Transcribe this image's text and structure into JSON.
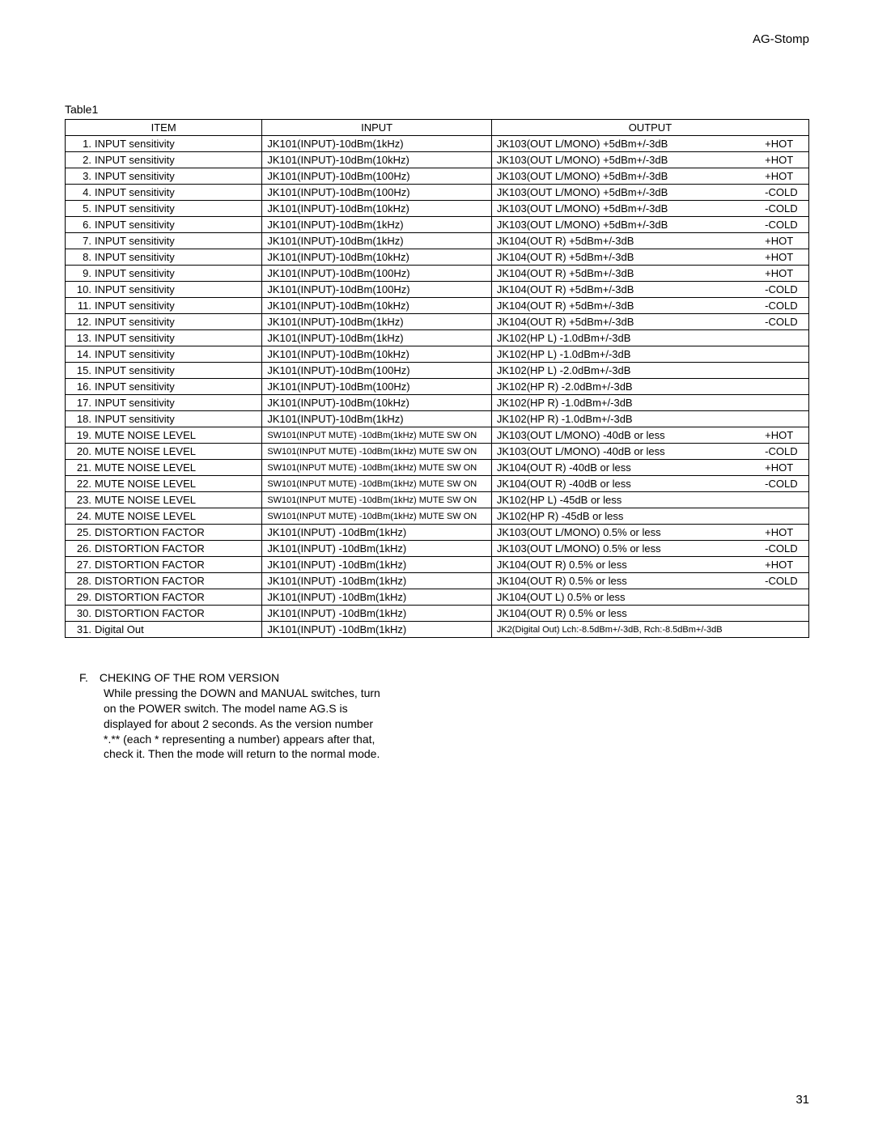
{
  "header": {
    "title": "AG-Stomp"
  },
  "table": {
    "caption": "Table1",
    "headers": {
      "item": "ITEM",
      "input": "INPUT",
      "output": "OUTPUT"
    },
    "rows": [
      {
        "n": "1.",
        "item": "INPUT sensitivity",
        "input": "JK101(INPUT)-10dBm(1kHz)",
        "out": "JK103(OUT L/MONO) +5dBm+/-3dB",
        "tag": "+HOT"
      },
      {
        "n": "2.",
        "item": "INPUT sensitivity",
        "input": "JK101(INPUT)-10dBm(10kHz)",
        "out": "JK103(OUT L/MONO) +5dBm+/-3dB",
        "tag": "+HOT"
      },
      {
        "n": "3.",
        "item": "INPUT sensitivity",
        "input": "JK101(INPUT)-10dBm(100Hz)",
        "out": "JK103(OUT L/MONO) +5dBm+/-3dB",
        "tag": "+HOT"
      },
      {
        "n": "4.",
        "item": "INPUT sensitivity",
        "input": "JK101(INPUT)-10dBm(100Hz)",
        "out": "JK103(OUT L/MONO) +5dBm+/-3dB",
        "tag": "-COLD"
      },
      {
        "n": "5.",
        "item": "INPUT sensitivity",
        "input": "JK101(INPUT)-10dBm(10kHz)",
        "out": "JK103(OUT L/MONO) +5dBm+/-3dB",
        "tag": "-COLD"
      },
      {
        "n": "6.",
        "item": "INPUT sensitivity",
        "input": "JK101(INPUT)-10dBm(1kHz)",
        "out": "JK103(OUT L/MONO) +5dBm+/-3dB",
        "tag": "-COLD"
      },
      {
        "n": "7.",
        "item": "INPUT sensitivity",
        "input": "JK101(INPUT)-10dBm(1kHz)",
        "out": "JK104(OUT R) +5dBm+/-3dB",
        "tag": "+HOT"
      },
      {
        "n": "8.",
        "item": "INPUT sensitivity",
        "input": "JK101(INPUT)-10dBm(10kHz)",
        "out": "JK104(OUT R) +5dBm+/-3dB",
        "tag": "+HOT"
      },
      {
        "n": "9.",
        "item": "INPUT sensitivity",
        "input": "JK101(INPUT)-10dBm(100Hz)",
        "out": "JK104(OUT R) +5dBm+/-3dB",
        "tag": "+HOT"
      },
      {
        "n": "10.",
        "item": "INPUT sensitivity",
        "input": "JK101(INPUT)-10dBm(100Hz)",
        "out": "JK104(OUT R) +5dBm+/-3dB",
        "tag": "-COLD"
      },
      {
        "n": "11.",
        "item": "INPUT sensitivity",
        "input": "JK101(INPUT)-10dBm(10kHz)",
        "out": "JK104(OUT R) +5dBm+/-3dB",
        "tag": "-COLD"
      },
      {
        "n": "12.",
        "item": "INPUT sensitivity",
        "input": "JK101(INPUT)-10dBm(1kHz)",
        "out": "JK104(OUT R) +5dBm+/-3dB",
        "tag": "-COLD"
      },
      {
        "n": "13.",
        "item": "INPUT sensitivity",
        "input": "JK101(INPUT)-10dBm(1kHz)",
        "out": "JK102(HP L) -1.0dBm+/-3dB",
        "tag": ""
      },
      {
        "n": "14.",
        "item": "INPUT sensitivity",
        "input": "JK101(INPUT)-10dBm(10kHz)",
        "out": "JK102(HP L) -1.0dBm+/-3dB",
        "tag": ""
      },
      {
        "n": "15.",
        "item": "INPUT sensitivity",
        "input": "JK101(INPUT)-10dBm(100Hz)",
        "out": "JK102(HP L) -2.0dBm+/-3dB",
        "tag": ""
      },
      {
        "n": "16.",
        "item": "INPUT sensitivity",
        "input": "JK101(INPUT)-10dBm(100Hz)",
        "out": "JK102(HP R) -2.0dBm+/-3dB",
        "tag": ""
      },
      {
        "n": "17.",
        "item": "INPUT sensitivity",
        "input": "JK101(INPUT)-10dBm(10kHz)",
        "out": "JK102(HP R) -1.0dBm+/-3dB",
        "tag": ""
      },
      {
        "n": "18.",
        "item": "INPUT sensitivity",
        "input": "JK101(INPUT)-10dBm(1kHz)",
        "out": "JK102(HP R) -1.0dBm+/-3dB",
        "tag": ""
      },
      {
        "n": "19.",
        "item": "MUTE NOISE LEVEL",
        "input": "SW101(INPUT MUTE) -10dBm(1kHz) MUTE SW ON",
        "out": "JK103(OUT L/MONO) -40dB or less",
        "tag": "+HOT",
        "small": true
      },
      {
        "n": "20.",
        "item": "MUTE NOISE LEVEL",
        "input": "SW101(INPUT MUTE) -10dBm(1kHz) MUTE SW ON",
        "out": "JK103(OUT L/MONO) -40dB or less",
        "tag": "-COLD",
        "small": true
      },
      {
        "n": "21.",
        "item": "MUTE NOISE LEVEL",
        "input": "SW101(INPUT MUTE) -10dBm(1kHz) MUTE SW ON",
        "out": "JK104(OUT R) -40dB or less",
        "tag": "+HOT",
        "small": true
      },
      {
        "n": "22.",
        "item": "MUTE NOISE LEVEL",
        "input": "SW101(INPUT MUTE) -10dBm(1kHz) MUTE SW ON",
        "out": "JK104(OUT R) -40dB or less",
        "tag": "-COLD",
        "small": true
      },
      {
        "n": "23.",
        "item": "MUTE NOISE LEVEL",
        "input": "SW101(INPUT MUTE) -10dBm(1kHz) MUTE SW ON",
        "out": "JK102(HP L) -45dB or less",
        "tag": "",
        "small": true
      },
      {
        "n": "24.",
        "item": "MUTE NOISE LEVEL",
        "input": "SW101(INPUT MUTE) -10dBm(1kHz) MUTE SW ON",
        "out": "JK102(HP R) -45dB or less",
        "tag": "",
        "small": true
      },
      {
        "n": "25.",
        "item": "DISTORTION FACTOR",
        "input": "JK101(INPUT) -10dBm(1kHz)",
        "out": "JK103(OUT L/MONO) 0.5% or less",
        "tag": "+HOT"
      },
      {
        "n": "26.",
        "item": "DISTORTION FACTOR",
        "input": "JK101(INPUT) -10dBm(1kHz)",
        "out": "JK103(OUT L/MONO) 0.5% or less",
        "tag": "-COLD"
      },
      {
        "n": "27.",
        "item": "DISTORTION FACTOR",
        "input": "JK101(INPUT) -10dBm(1kHz)",
        "out": "JK104(OUT R) 0.5% or less",
        "tag": "+HOT"
      },
      {
        "n": "28.",
        "item": "DISTORTION FACTOR",
        "input": "JK101(INPUT) -10dBm(1kHz)",
        "out": "JK104(OUT R) 0.5% or less",
        "tag": "-COLD"
      },
      {
        "n": "29.",
        "item": "DISTORTION FACTOR",
        "input": "JK101(INPUT) -10dBm(1kHz)",
        "out": "JK104(OUT L) 0.5% or less",
        "tag": ""
      },
      {
        "n": "30.",
        "item": "DISTORTION FACTOR",
        "input": "JK101(INPUT) -10dBm(1kHz)",
        "out": "JK104(OUT R) 0.5% or less",
        "tag": ""
      },
      {
        "n": "31.",
        "item": "Digital Out",
        "input": "JK101(INPUT) -10dBm(1kHz)",
        "out": "JK2(Digital Out) Lch:-8.5dBm+/-3dB, Rch:-8.5dBm+/-3dB",
        "tag": "",
        "smallout": true
      }
    ]
  },
  "sectionF": {
    "letter": "F.",
    "heading": "CHEKING OF THE ROM VERSION",
    "lines": [
      "While pressing the DOWN and MANUAL switches, turn",
      "on the POWER switch. The model name  AG.S  is",
      "displayed for about 2 seconds. As the version number",
      " *.**  (each * representing a number) appears after that,",
      "check it. Then the mode will return to the normal mode."
    ]
  },
  "pageNumber": "31"
}
